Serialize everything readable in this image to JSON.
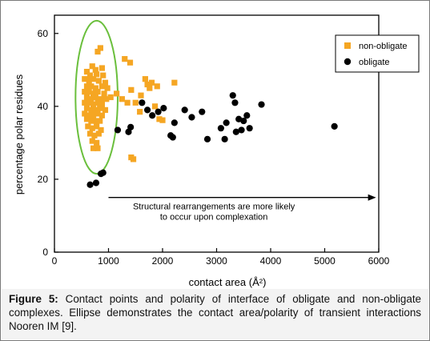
{
  "caption": {
    "label": "Figure 5:",
    "text": " Contact points and polarity of interface of obligate and non-obligate complexes. Ellipse demonstrates the contact area/polarity of transient interactions Nooren IM [9]."
  },
  "chart_data": {
    "type": "scatter",
    "title": "",
    "xlabel": "contact area (Å²)",
    "ylabel": "percentage polar residues",
    "xlim": [
      0,
      6000
    ],
    "ylim": [
      0,
      65
    ],
    "xticks": [
      0,
      1000,
      2000,
      3000,
      4000,
      5000,
      6000
    ],
    "yticks": [
      0,
      20,
      40,
      60
    ],
    "grid": false,
    "legend_position": "top-right",
    "annotation": {
      "line1": "Structural rearrangements are more likely",
      "line2": "to occur upon complexation",
      "arrow_from_x": 1000,
      "arrow_to_x": 5950,
      "arrow_y": 15
    },
    "ellipse": {
      "cx": 780,
      "cy": 42.5,
      "rx": 390,
      "ry": 21,
      "color": "#6abf3c"
    },
    "series": [
      {
        "name": "non-obligate",
        "marker": "square",
        "color": "#f5a623",
        "points": [
          [
            850,
            56
          ],
          [
            800,
            55
          ],
          [
            700,
            51
          ],
          [
            760,
            50
          ],
          [
            880,
            50.5
          ],
          [
            600,
            49.5
          ],
          [
            660,
            48.5
          ],
          [
            780,
            48.8
          ],
          [
            900,
            48.5
          ],
          [
            560,
            47.5
          ],
          [
            640,
            47
          ],
          [
            720,
            47.5
          ],
          [
            820,
            47
          ],
          [
            940,
            46.5
          ],
          [
            600,
            45.5
          ],
          [
            680,
            45.5
          ],
          [
            760,
            45
          ],
          [
            880,
            45.5
          ],
          [
            980,
            45
          ],
          [
            560,
            44
          ],
          [
            640,
            44
          ],
          [
            720,
            43.5
          ],
          [
            800,
            44
          ],
          [
            920,
            43.5
          ],
          [
            600,
            42.5
          ],
          [
            680,
            42
          ],
          [
            760,
            42.5
          ],
          [
            860,
            42
          ],
          [
            960,
            42
          ],
          [
            1040,
            42.5
          ],
          [
            560,
            41
          ],
          [
            640,
            41
          ],
          [
            720,
            40.5
          ],
          [
            800,
            41
          ],
          [
            880,
            40.5
          ],
          [
            600,
            39.5
          ],
          [
            680,
            39
          ],
          [
            760,
            39
          ],
          [
            840,
            39.5
          ],
          [
            940,
            39
          ],
          [
            560,
            38
          ],
          [
            640,
            37.5
          ],
          [
            720,
            37.5
          ],
          [
            800,
            38
          ],
          [
            880,
            37.5
          ],
          [
            600,
            36.5
          ],
          [
            680,
            36
          ],
          [
            760,
            36
          ],
          [
            840,
            36
          ],
          [
            620,
            34.5
          ],
          [
            700,
            34
          ],
          [
            780,
            34.5
          ],
          [
            860,
            33.5
          ],
          [
            660,
            32.5
          ],
          [
            740,
            32
          ],
          [
            820,
            32.5
          ],
          [
            700,
            30.5
          ],
          [
            780,
            30
          ],
          [
            720,
            28.5
          ],
          [
            800,
            28.5
          ],
          [
            1300,
            53
          ],
          [
            1400,
            52
          ],
          [
            1150,
            43.5
          ],
          [
            1250,
            42
          ],
          [
            1350,
            41
          ],
          [
            1420,
            44.5
          ],
          [
            1500,
            41
          ],
          [
            1600,
            43
          ],
          [
            1680,
            47.5
          ],
          [
            1720,
            46
          ],
          [
            1800,
            46.5
          ],
          [
            1900,
            45.5
          ],
          [
            1760,
            45
          ],
          [
            1860,
            40
          ],
          [
            1940,
            36.5
          ],
          [
            2000,
            36.2
          ],
          [
            2220,
            46.5
          ],
          [
            1580,
            38.5
          ],
          [
            1420,
            26
          ],
          [
            1460,
            25.5
          ]
        ]
      },
      {
        "name": "obligate",
        "marker": "circle",
        "color": "#000000",
        "points": [
          [
            660,
            18.5
          ],
          [
            770,
            19
          ],
          [
            860,
            21.5
          ],
          [
            900,
            21.8
          ],
          [
            1170,
            33.5
          ],
          [
            1370,
            33
          ],
          [
            1410,
            34.3
          ],
          [
            1620,
            41
          ],
          [
            1720,
            39
          ],
          [
            1810,
            37.5
          ],
          [
            1920,
            38.5
          ],
          [
            2020,
            39.5
          ],
          [
            2150,
            32
          ],
          [
            2190,
            31.5
          ],
          [
            2220,
            35.5
          ],
          [
            2410,
            39
          ],
          [
            2540,
            37
          ],
          [
            2730,
            38.5
          ],
          [
            2830,
            31
          ],
          [
            3080,
            34
          ],
          [
            3150,
            31
          ],
          [
            3180,
            35.5
          ],
          [
            3300,
            43
          ],
          [
            3340,
            41
          ],
          [
            3360,
            33
          ],
          [
            3410,
            36.5
          ],
          [
            3460,
            33.5
          ],
          [
            3500,
            36
          ],
          [
            3560,
            37.5
          ],
          [
            3610,
            34
          ],
          [
            3830,
            40.5
          ],
          [
            5180,
            34.5
          ]
        ]
      }
    ]
  }
}
